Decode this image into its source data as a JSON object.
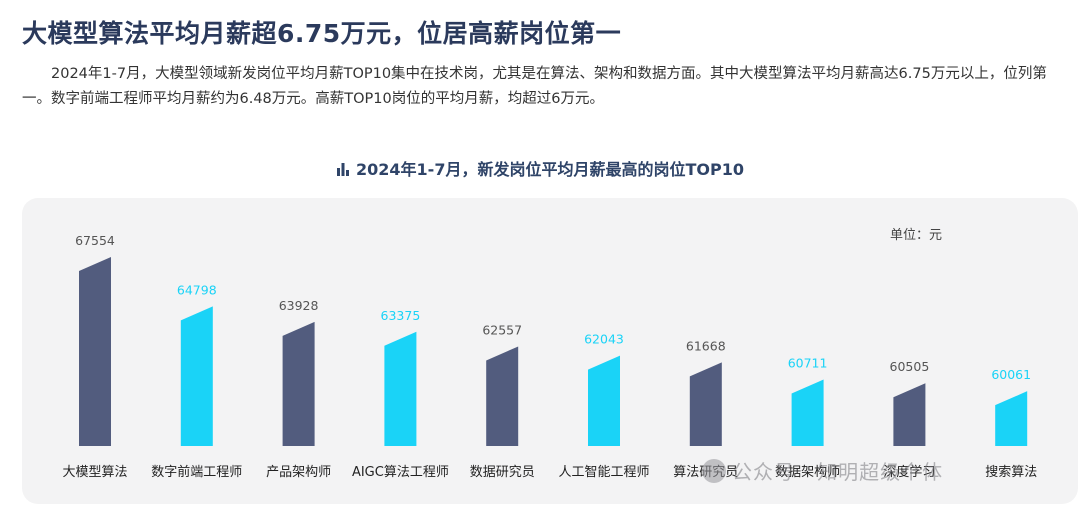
{
  "header": {
    "title": "大模型算法平均月薪超6.75万元，位居高薪岗位第一"
  },
  "intro": {
    "text": "2024年1-7月，大模型领域新发岗位平均月薪TOP10集中在技术岗，尤其是在算法、架构和数据方面。其中大模型算法平均月薪高达6.75万元以上，位列第一。数字前端工程师平均月薪约为6.48万元。高薪TOP10岗位的平均月薪，均超过6万元。"
  },
  "chart_data": {
    "type": "bar",
    "title": "2024年1-7月，新发岗位平均月薪最高的岗位TOP10",
    "unit_label": "单位：元",
    "categories": [
      "大模型算法",
      "数字前端工程师",
      "产品架构师",
      "AIGC算法工程师",
      "数据研究员",
      "人工智能工程师",
      "算法研究员",
      "数据架构师",
      "深度学习",
      "搜索算法"
    ],
    "values": [
      67554,
      64798,
      63928,
      63375,
      62557,
      62043,
      61668,
      60711,
      60505,
      60061
    ],
    "ylim": [
      57000,
      68500
    ],
    "grid": false,
    "colors": [
      "#525c7e",
      "#1ad3f7"
    ]
  },
  "watermark": {
    "text": "公众号 · 知明超级个体"
  }
}
